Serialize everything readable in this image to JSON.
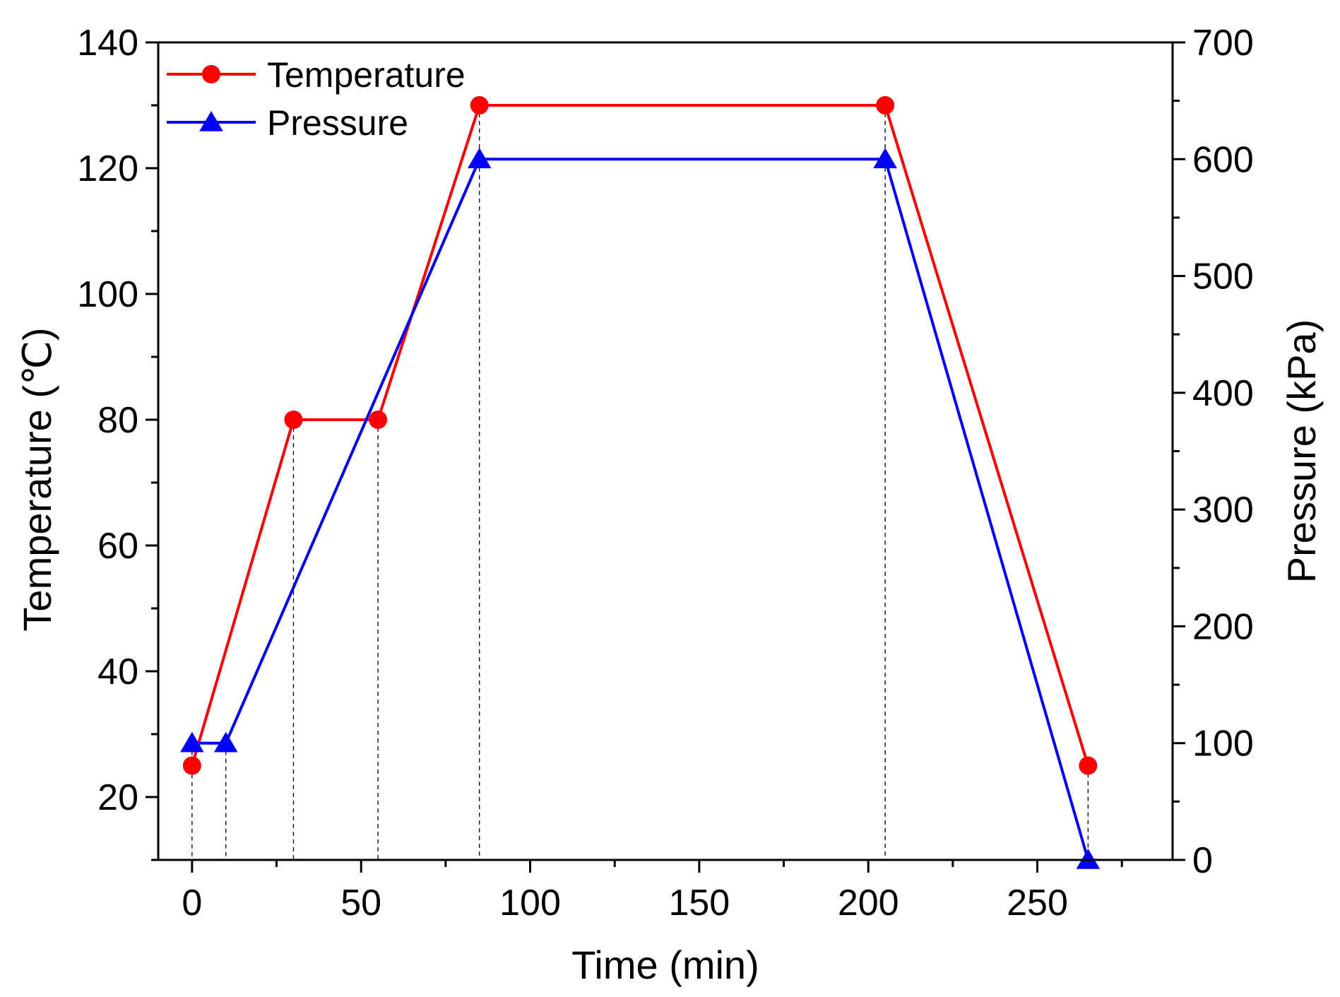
{
  "chart_data": {
    "type": "line",
    "title": "",
    "xlabel": "Time (min)",
    "ylabel_left": "Temperature (℃)",
    "ylabel_right": "Pressure (kPa)",
    "xlim": [
      -10,
      290
    ],
    "ylim_left": [
      10,
      140
    ],
    "ylim_right": [
      0,
      700
    ],
    "x_ticks": [
      0,
      50,
      100,
      150,
      200,
      250
    ],
    "y_left_ticks": [
      20,
      40,
      60,
      80,
      100,
      120,
      140
    ],
    "y_right_ticks": [
      0,
      100,
      200,
      300,
      400,
      500,
      600,
      700
    ],
    "grid": false,
    "legend_position": "top-left",
    "series": [
      {
        "name": "Temperature",
        "axis": "left",
        "color": "#ff0000",
        "marker": "circle",
        "x": [
          0,
          30,
          55,
          85,
          205,
          265
        ],
        "values": [
          25,
          80,
          80,
          130,
          130,
          25
        ]
      },
      {
        "name": "Pressure",
        "axis": "right",
        "color": "#0000ff",
        "marker": "triangle",
        "x": [
          0,
          10,
          85,
          205,
          265
        ],
        "values": [
          100,
          100,
          600,
          600,
          0
        ]
      }
    ],
    "guide_lines_x": [
      0,
      10,
      30,
      55,
      85,
      205,
      265
    ]
  }
}
